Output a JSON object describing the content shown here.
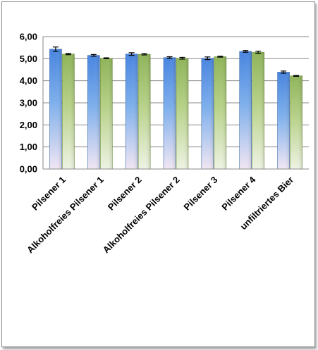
{
  "chart_data": {
    "type": "bar",
    "categories": [
      "Pilsener 1",
      "Alkoholfreies Pilsener 1",
      "Pilsener 2",
      "Alkoholfreies Pilsener 2",
      "Pilsener 3",
      "Pilsener 4",
      "unfiltriertes Bier"
    ],
    "series": [
      {
        "values": [
          5.43,
          5.15,
          5.21,
          5.05,
          5.02,
          5.33,
          4.39
        ],
        "errors": [
          0.1,
          0.04,
          0.06,
          0.04,
          0.06,
          0.04,
          0.05
        ],
        "color": "#4f81bd"
      },
      {
        "values": [
          5.21,
          5.02,
          5.2,
          5.02,
          5.09,
          5.29,
          4.22
        ],
        "errors": [
          0.03,
          0.02,
          0.03,
          0.04,
          0.02,
          0.05,
          0.02
        ],
        "color": "#9bbb59"
      }
    ],
    "yticks": [
      "0,00",
      "1,00",
      "2,00",
      "3,00",
      "4,00",
      "5,00",
      "6,00"
    ],
    "ylim": [
      0,
      6
    ],
    "grid": true,
    "title": "",
    "xlabel": "",
    "ylabel": ""
  }
}
